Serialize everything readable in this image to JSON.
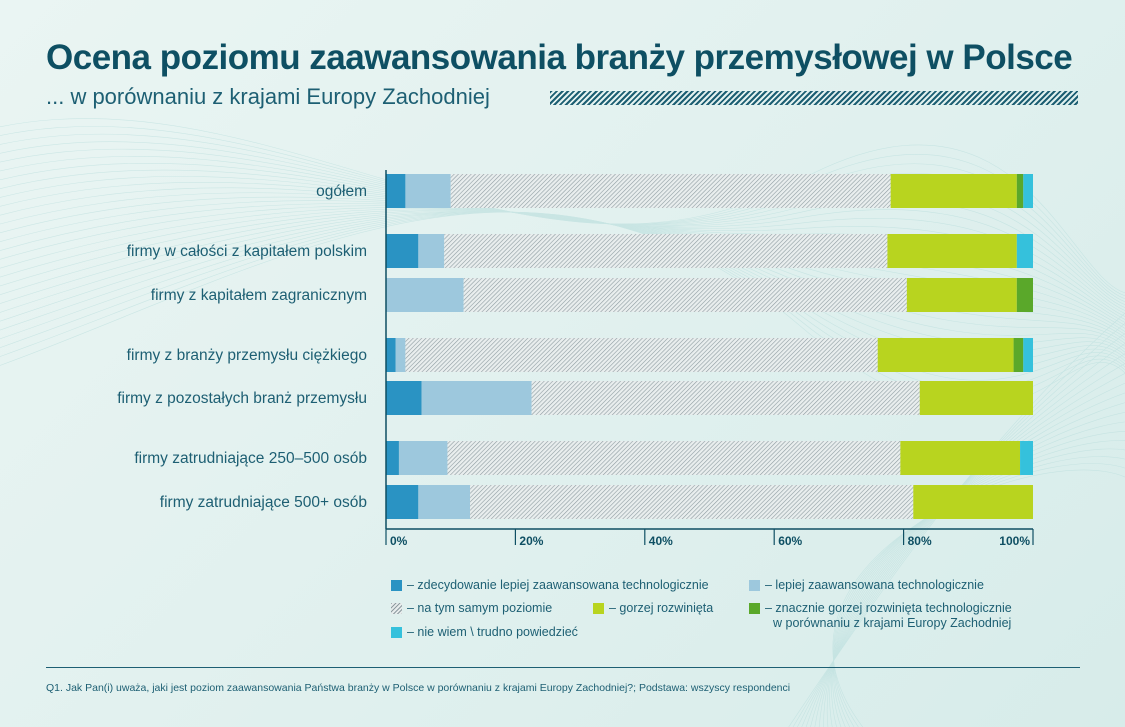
{
  "title": "Ocena poziomu zaawansowania branży przemysłowej w Polsce",
  "subtitle": "... w porównaniu z krajami Europy Zachodniej",
  "footnote": "Q1. Jak Pan(i) uważa, jaki jest poziom zaawansowania Państwa branży w Polsce w porównaniu z krajami Europy Zachodniej?; Podstawa: wszyscy respondenci",
  "legend": {
    "s0": "– zdecydowanie lepiej zaawansowana technologicznie",
    "s1": "– lepiej zaawansowana technologicznie",
    "s2": "– na tym samym poziomie",
    "s3": "– gorzej rozwinięta",
    "s4_line1": "– znacznie gorzej rozwinięta technologicznie",
    "s4_line2": "w porównaniu z krajami Europy Zachodniej",
    "s5": "– nie wiem \\ trudno powiedzieć"
  },
  "colors": {
    "s0": "#2a93c3",
    "s1": "#9dc8dd",
    "s2_hatch": "#8e9ca1",
    "s3": "#b8d41f",
    "s4": "#5aa82a",
    "s5": "#35c1dc",
    "axis": "#0e4f63"
  },
  "chart_data": {
    "type": "bar",
    "orientation": "horizontal",
    "stacked": true,
    "title": "Ocena poziomu zaawansowania branży przemysłowej w Polsce",
    "subtitle": "... w porównaniu z krajami Europy Zachodniej",
    "xlim": [
      0,
      100
    ],
    "xticks": [
      "0%",
      "20%",
      "40%",
      "60%",
      "80%",
      "100%"
    ],
    "categories": [
      "ogółem",
      "firmy w całości z kapitałem polskim",
      "firmy z kapitałem zagranicznym",
      "firmy z branży przemysłu ciężkiego",
      "firmy z pozostałych branż przemysłu",
      "firmy zatrudniające 250–500 osób",
      "firmy zatrudniające 500+ osób"
    ],
    "series": [
      {
        "name": "zdecydowanie lepiej zaawansowana technologicznie",
        "values": [
          3,
          5,
          0,
          1.5,
          5.5,
          2,
          5
        ]
      },
      {
        "name": "lepiej zaawansowana technologicznie",
        "values": [
          7,
          4,
          12,
          1.5,
          17,
          7.5,
          8
        ]
      },
      {
        "name": "na tym samym poziomie",
        "values": [
          68,
          68.5,
          68.5,
          73,
          60,
          70,
          68.5
        ]
      },
      {
        "name": "gorzej rozwinięta",
        "values": [
          19.5,
          20,
          17,
          21,
          17.5,
          18.5,
          18.5
        ]
      },
      {
        "name": "znacznie gorzej rozwinięta technologicznie w porównaniu z krajami Europy Zachodniej",
        "values": [
          1,
          0,
          2.5,
          1.5,
          0,
          0,
          0
        ]
      },
      {
        "name": "nie wiem \\ trudno powiedzieć",
        "values": [
          1.5,
          2.5,
          0,
          1.5,
          0,
          2,
          0
        ]
      }
    ],
    "legend_position": "bottom"
  }
}
